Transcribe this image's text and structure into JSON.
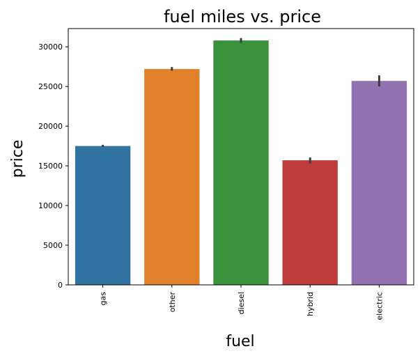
{
  "chart_data": {
    "type": "bar",
    "title": "fuel miles vs. price",
    "xlabel": "fuel",
    "ylabel": "price",
    "categories": [
      "gas",
      "other",
      "diesel",
      "hybrid",
      "electric"
    ],
    "values": [
      17500,
      27200,
      30800,
      15700,
      25700
    ],
    "error_low": [
      17400,
      27000,
      30500,
      15300,
      25000
    ],
    "error_high": [
      17650,
      27450,
      31100,
      16050,
      26400
    ],
    "colors": [
      "#3274a1",
      "#e1812c",
      "#3a923a",
      "#c03d3e",
      "#9372b2"
    ],
    "ylim": [
      0,
      32300
    ],
    "yticks": [
      0,
      5000,
      10000,
      15000,
      20000,
      25000,
      30000
    ],
    "grid": false,
    "legend": "none"
  }
}
